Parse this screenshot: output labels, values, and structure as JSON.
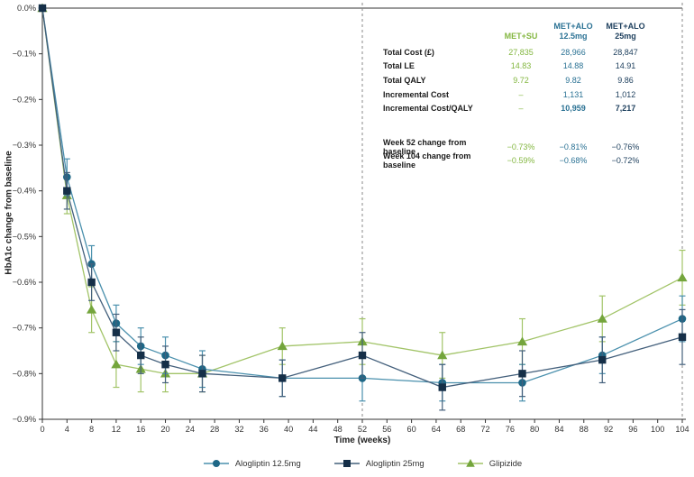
{
  "accent_colors": {
    "met_su_green": "#84b741",
    "met_alo_12_5_teal": "#2b7294",
    "met_alo_25_navy": "#1c3e5c",
    "axis_text": "#333333",
    "dashed_reference_line": "#8a8a8a"
  },
  "chart_data": {
    "type": "line",
    "title": "",
    "xlabel": "Time (weeks)",
    "ylabel": "HbA1c change from baseline",
    "xlim": [
      0,
      104
    ],
    "ylim": [
      -0.9,
      0
    ],
    "grid": false,
    "legend_position": "bottom",
    "x_ticks": [
      0,
      4,
      8,
      12,
      16,
      20,
      24,
      28,
      32,
      36,
      40,
      44,
      48,
      52,
      56,
      60,
      64,
      68,
      72,
      76,
      80,
      84,
      88,
      92,
      96,
      100,
      104
    ],
    "y_tick_labels": [
      "0.0%",
      "−0.1%",
      "−0.2%",
      "−0.3%",
      "−0.4%",
      "−0.5%",
      "−0.6%",
      "−0.7%",
      "−0.8%",
      "−0.9%"
    ],
    "reference_lines_x": [
      52,
      104
    ],
    "x": [
      0,
      4,
      8,
      12,
      16,
      20,
      26,
      39,
      52,
      65,
      78,
      91,
      104
    ],
    "draw_order": [
      2,
      0,
      1
    ],
    "series": [
      {
        "name": "Alogliptin 12.5mg",
        "marker": "circle",
        "line_color": "#4a90ad",
        "marker_color": "#1e6786",
        "values": [
          0,
          -0.37,
          -0.56,
          -0.69,
          -0.74,
          -0.76,
          -0.79,
          -0.81,
          -0.81,
          -0.82,
          -0.82,
          -0.76,
          -0.68
        ],
        "errors": [
          0,
          0.04,
          0.04,
          0.04,
          0.04,
          0.04,
          0.04,
          0.04,
          0.05,
          0.04,
          0.04,
          0.04,
          0.05
        ]
      },
      {
        "name": "Alogliptin 25mg",
        "marker": "square",
        "line_color": "#44607c",
        "marker_color": "#152f48",
        "values": [
          0,
          -0.4,
          -0.6,
          -0.71,
          -0.76,
          -0.78,
          -0.8,
          -0.81,
          -0.76,
          -0.83,
          -0.8,
          -0.77,
          -0.72
        ],
        "errors": [
          0,
          0.04,
          0.04,
          0.04,
          0.04,
          0.04,
          0.04,
          0.04,
          0.05,
          0.05,
          0.05,
          0.05,
          0.06
        ]
      },
      {
        "name": "Glipizide",
        "marker": "triangle",
        "line_color": "#a2c468",
        "marker_color": "#74a53c",
        "values": [
          0,
          -0.41,
          -0.66,
          -0.78,
          -0.79,
          -0.8,
          -0.8,
          -0.74,
          -0.73,
          -0.76,
          -0.73,
          -0.68,
          -0.59
        ],
        "errors": [
          0,
          0.04,
          0.05,
          0.05,
          0.05,
          0.04,
          0.04,
          0.04,
          0.05,
          0.05,
          0.05,
          0.05,
          0.06
        ]
      }
    ]
  },
  "inset_table": {
    "columns": [
      {
        "label": "MET+SU",
        "color": "#84b741"
      },
      {
        "label": "MET+ALO\n12.5mg",
        "color": "#2b7294"
      },
      {
        "label": "MET+ALO\n25mg",
        "color": "#1c3e5c"
      }
    ],
    "rows": [
      {
        "label": "Total Cost (£)",
        "values": [
          "27,835",
          "28,966",
          "28,847"
        ]
      },
      {
        "label": "Total LE",
        "values": [
          "14.83",
          "14.88",
          "14.91"
        ]
      },
      {
        "label": "Total QALY",
        "values": [
          "9.72",
          "9.82",
          "9.86"
        ]
      },
      {
        "label": "Incremental Cost",
        "values": [
          "–",
          "1,131",
          "1,012"
        ]
      },
      {
        "label": "Incremental Cost/QALY",
        "values": [
          "–",
          "10,959",
          "7,217"
        ]
      }
    ],
    "baseline_rows": [
      {
        "label": "Week 52 change from baseline",
        "values": [
          "−0.73%",
          "−0.81%",
          "−0.76%"
        ]
      },
      {
        "label": "Week 104 change from baseline",
        "values": [
          "−0.59%",
          "−0.68%",
          "−0.72%"
        ]
      }
    ]
  }
}
